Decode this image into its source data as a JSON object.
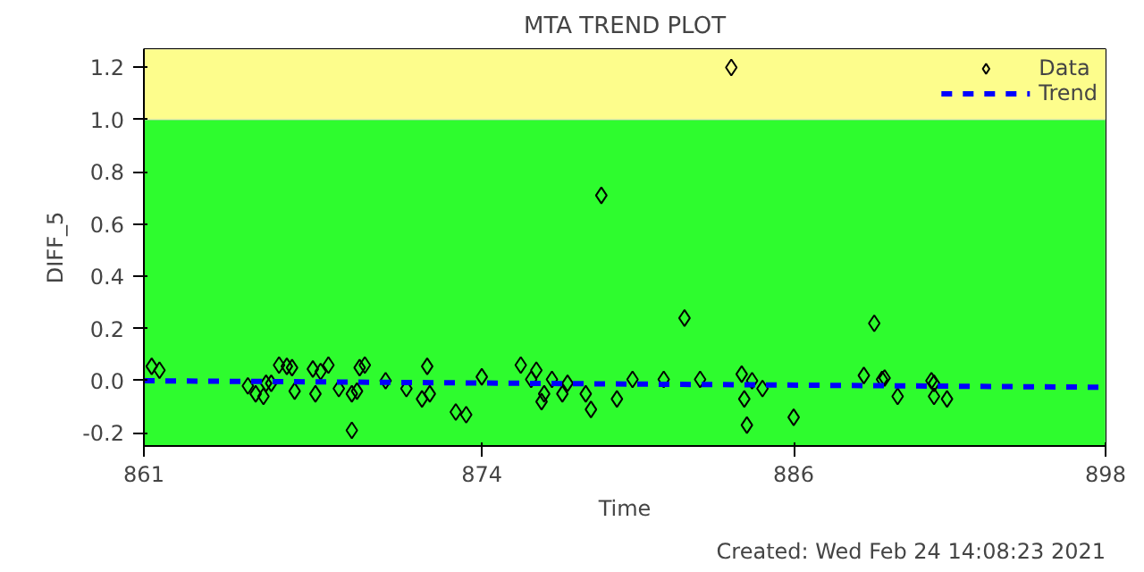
{
  "chart_data": {
    "type": "scatter",
    "title": "MTA TREND PLOT",
    "xlabel": "Time",
    "ylabel": "DIFF_5",
    "annotations": [
      "Created: Wed Feb 24 14:08:23 2021"
    ],
    "xlim": [
      861,
      898
    ],
    "xticks": [
      861,
      874,
      886,
      898
    ],
    "ylim": [
      -0.25,
      1.27
    ],
    "yticks": [
      {
        "value": -0.2,
        "label": "-0.2"
      },
      {
        "value": 0,
        "label": "0.0"
      },
      {
        "value": 0.2,
        "label": "0.2"
      },
      {
        "value": 0.4,
        "label": "0.4"
      },
      {
        "value": 0.6,
        "label": "0.6"
      },
      {
        "value": 0.8,
        "label": "0.8"
      },
      {
        "value": 1.0,
        "label": "1.0"
      },
      {
        "value": 1.2,
        "label": "1.2"
      }
    ],
    "grid": false,
    "legend": "top right",
    "bands": [
      {
        "axis": "y",
        "from": -0.25,
        "to": 1.0,
        "color": "#2efc2e"
      },
      {
        "axis": "y",
        "from": 1.0,
        "to": 1.27,
        "color": "#fdfd8c"
      }
    ],
    "series": [
      {
        "name": "Data",
        "marker": "diamond",
        "color": "#000000",
        "x": [
          861.3,
          861.6,
          865.0,
          865.3,
          865.6,
          865.7,
          865.9,
          866.2,
          866.5,
          866.7,
          866.8,
          867.6,
          867.5,
          867.8,
          868.1,
          868.5,
          869.0,
          869.0,
          869.2,
          869.3,
          869.5,
          870.3,
          871.1,
          871.7,
          871.9,
          872.0,
          873.0,
          873.4,
          874.0,
          875.5,
          875.9,
          876.1,
          876.3,
          876.4,
          876.7,
          877.1,
          877.3,
          878.0,
          878.2,
          878.6,
          879.2,
          879.8,
          881.0,
          881.8,
          882.4,
          883.6,
          884.0,
          884.1,
          884.4,
          884.2,
          884.8,
          886.0,
          888.7,
          889.1,
          889.4,
          889.5,
          890.0,
          891.3,
          891.4,
          891.4,
          891.9
        ],
        "values": [
          0.055,
          0.04,
          -0.02,
          -0.05,
          -0.06,
          -0.01,
          -0.01,
          0.06,
          0.055,
          0.05,
          -0.04,
          -0.05,
          0.045,
          0.035,
          0.06,
          -0.03,
          -0.19,
          -0.05,
          -0.04,
          0.05,
          0.06,
          0.0,
          -0.03,
          -0.07,
          0.055,
          -0.05,
          -0.12,
          -0.13,
          0.015,
          0.06,
          0.005,
          0.04,
          -0.08,
          -0.05,
          0.005,
          -0.05,
          -0.01,
          -0.05,
          -0.11,
          0.71,
          -0.07,
          0.005,
          0.005,
          0.24,
          0.005,
          1.2,
          0.025,
          -0.07,
          0.0,
          -0.17,
          -0.03,
          -0.14,
          0.02,
          0.22,
          0.005,
          0.01,
          -0.06,
          0.0,
          -0.01,
          -0.06,
          -0.07
        ]
      },
      {
        "name": "Trend",
        "type": "line",
        "line_style": "dashed",
        "color": "#0000ff",
        "x": [
          861,
          898
        ],
        "values": [
          0.0,
          -0.025
        ]
      }
    ]
  }
}
